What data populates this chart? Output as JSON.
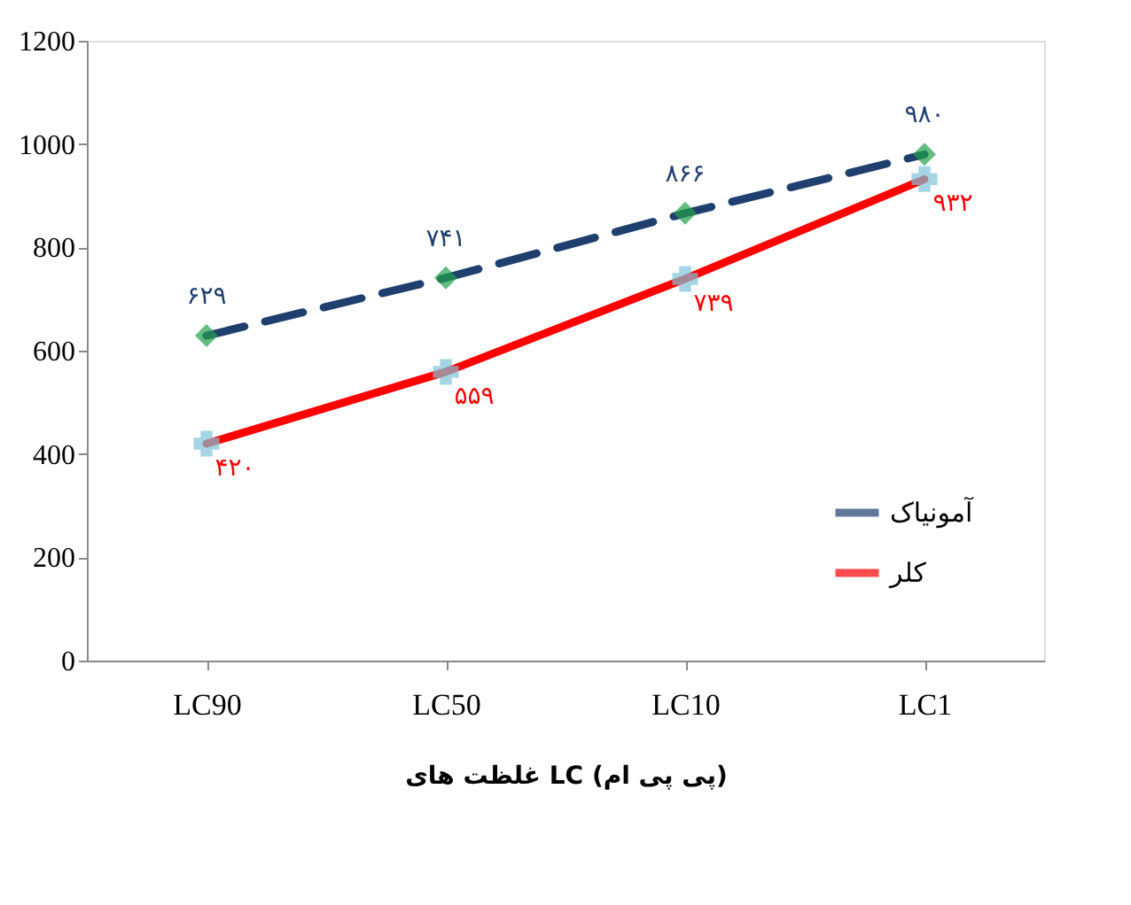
{
  "chart_data": {
    "type": "line",
    "xlabel": "غلظت های LC (پی پی ام)",
    "categories": [
      "LC90",
      "LC50",
      "LC10",
      "LC1"
    ],
    "series": [
      {
        "name": "آمونیاک",
        "color": "#1f3f6e",
        "colors": [
          "#1fa14a",
          "#1fa14a",
          "#1fa14a",
          "#1fa14a"
        ],
        "marker": "diamond",
        "line_style": "dashed",
        "values": [
          629,
          741,
          866,
          980
        ],
        "value_labels": [
          "۶۲۹",
          "۷۴۱",
          "۸۶۶",
          "۹۸۰"
        ]
      },
      {
        "name": "کلر",
        "color": "#ff0000",
        "colors": [
          "#7fc4d9",
          "#7fc4d9",
          "#7fc4d9",
          "#7fc4d9"
        ],
        "marker": "cross",
        "line_style": "solid",
        "values": [
          420,
          559,
          739,
          932
        ],
        "value_labels": [
          "۴۲۰",
          "۵۵۹",
          "۷۳۹",
          "۹۳۲"
        ]
      }
    ],
    "ylim": [
      0,
      1200
    ],
    "yticks": [
      0,
      200,
      400,
      600,
      800,
      1000,
      1200
    ],
    "grid": false,
    "legend": "bottom right"
  }
}
